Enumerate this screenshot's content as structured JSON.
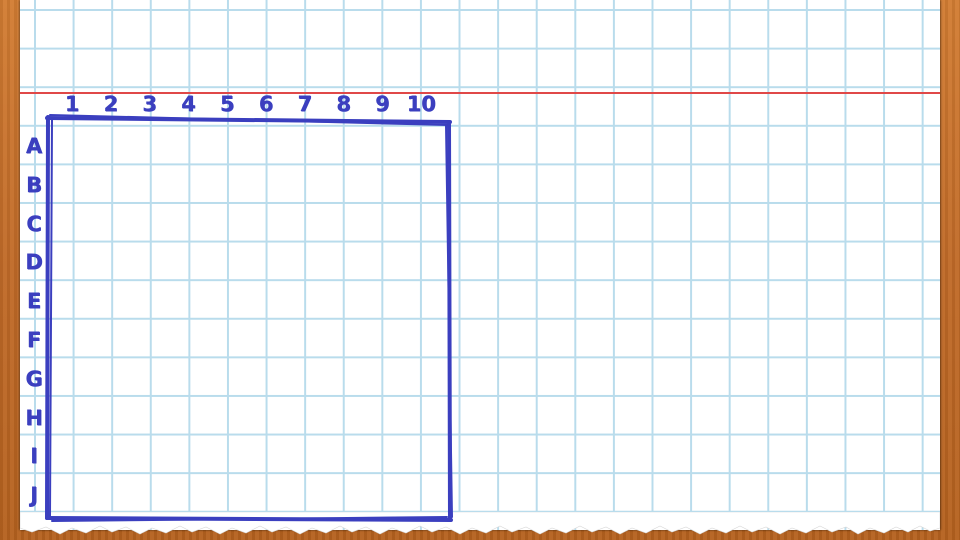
{
  "board": {
    "column_labels": [
      "1",
      "2",
      "3",
      "4",
      "5",
      "6",
      "7",
      "8",
      "9",
      "10"
    ],
    "row_labels": [
      "A",
      "B",
      "C",
      "D",
      "E",
      "F",
      "G",
      "H",
      "I",
      "J"
    ]
  },
  "colors": {
    "paper": "#ffffff",
    "grid_lines": "#b9dcec",
    "margin_line": "#e04848",
    "ink": "#3b3fbf",
    "wood": "#c8742e"
  }
}
